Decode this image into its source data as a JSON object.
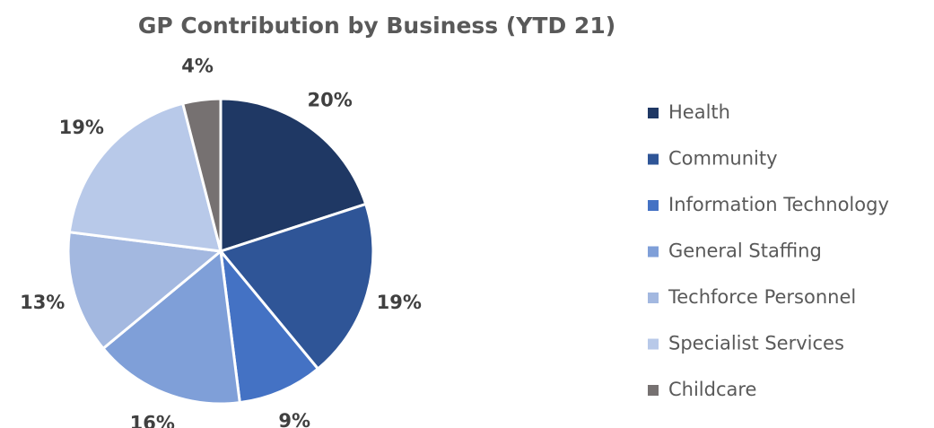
{
  "chart_data": {
    "type": "pie",
    "title": "GP Contribution by Business (YTD 21)",
    "categories": [
      "Health",
      "Community",
      "Information Technology",
      "General Staffing",
      "Techforce Personnel",
      "Specialist Services",
      "Childcare"
    ],
    "values": [
      20,
      19,
      9,
      16,
      13,
      19,
      4
    ],
    "value_labels": [
      "20%",
      "19%",
      "9%",
      "16%",
      "13%",
      "19%",
      "4%"
    ],
    "colors": [
      "#1f3864",
      "#2f5597",
      "#4472c4",
      "#7f9fd8",
      "#a3b8e0",
      "#b8c9e9",
      "#767171"
    ],
    "legend": "right"
  }
}
